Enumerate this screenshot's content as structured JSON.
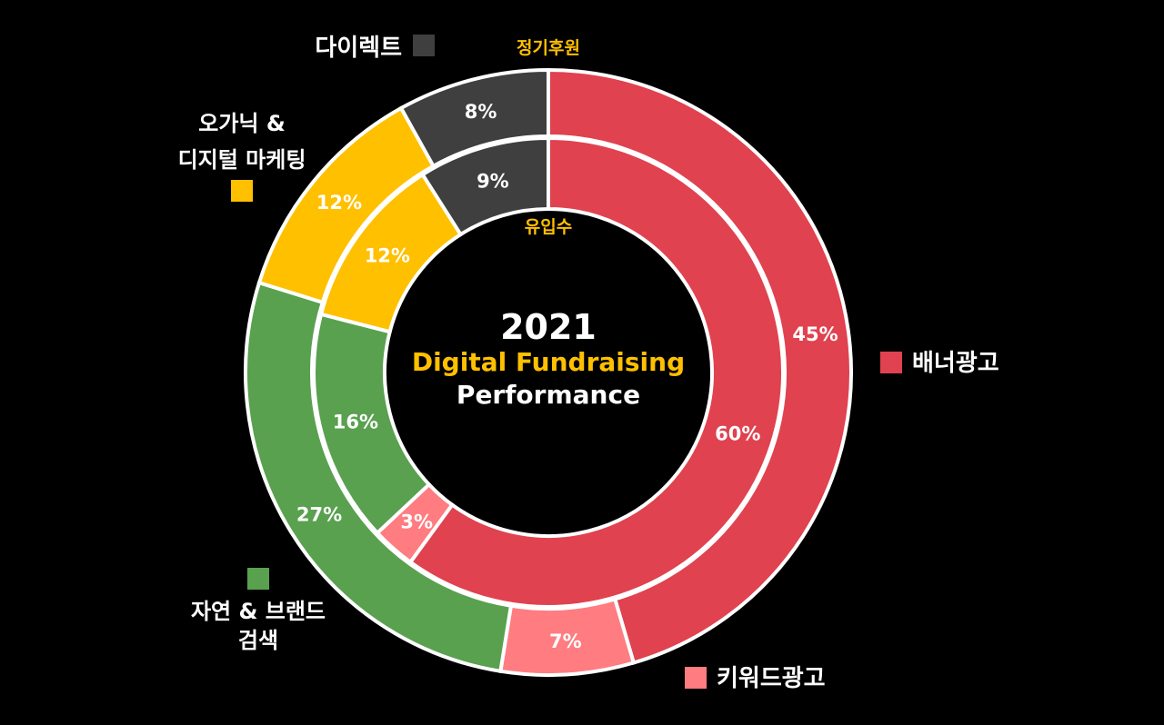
{
  "chart_data": {
    "type": "donut",
    "title": {
      "year": "2021",
      "line2": "Digital Fundraising",
      "line3": "Performance"
    },
    "categories": [
      "배너광고",
      "키워드광고",
      "자연 & 브랜드 검색",
      "오가닉 & 디지털 마케팅",
      "다이렉트"
    ],
    "colors": [
      "#e0424f",
      "#ff7c80",
      "#59a14f",
      "#ffc000",
      "#3f3f3f"
    ],
    "series": [
      {
        "name": "정기후원",
        "ring": "outer",
        "values": [
          45,
          7,
          27,
          12,
          8
        ],
        "labels": [
          "45%",
          "7%",
          "27%",
          "12%",
          "8%"
        ]
      },
      {
        "name": "유입수",
        "ring": "inner",
        "values": [
          60,
          3,
          16,
          12,
          9
        ],
        "labels": [
          "60%",
          "3%",
          "16%",
          "12%",
          "9%"
        ]
      }
    ],
    "legend": [
      {
        "lines": [
          "배너광고"
        ],
        "color": "#e0424f"
      },
      {
        "lines": [
          "키워드광고"
        ],
        "color": "#ff7c80"
      },
      {
        "lines": [
          "자연 & 브랜드",
          "검색"
        ],
        "color": "#59a14f"
      },
      {
        "lines": [
          "오가닉 &",
          "디지털 마케팅"
        ],
        "color": "#ffc000"
      },
      {
        "lines": [
          "다이렉트"
        ],
        "color": "#3f3f3f"
      }
    ]
  }
}
